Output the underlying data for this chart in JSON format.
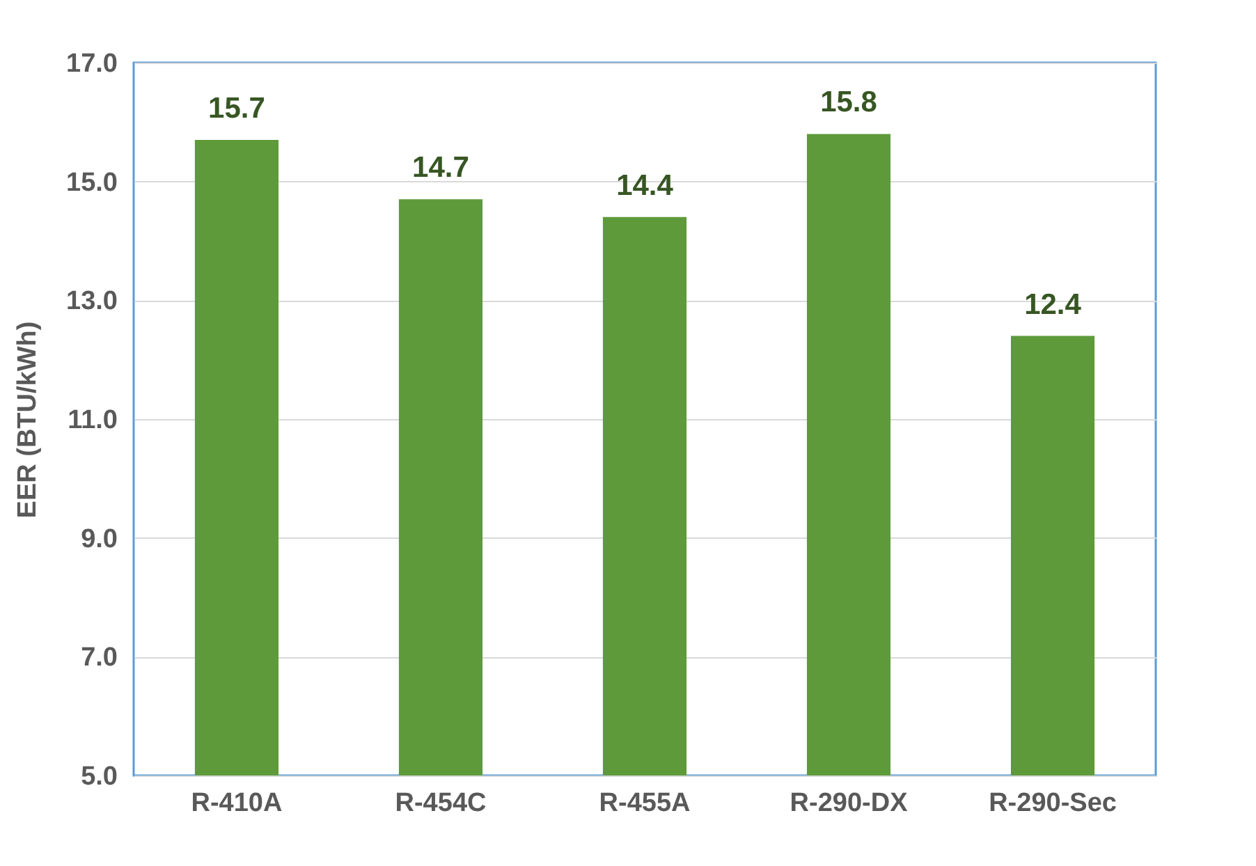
{
  "chart_data": {
    "type": "bar",
    "ylabel": "EER (BTU/kWh)",
    "categories": [
      "R-410A",
      "R-454C",
      "R-455A",
      "R-290-DX",
      "R-290-Sec"
    ],
    "values": [
      15.7,
      14.7,
      14.4,
      15.8,
      12.4
    ],
    "color": "#5e9a3a",
    "ylim": [
      5,
      17
    ],
    "yticks": [
      {
        "value": 5,
        "label": "5.0"
      },
      {
        "value": 7,
        "label": "7.0"
      },
      {
        "value": 9,
        "label": "9.0"
      },
      {
        "value": 11,
        "label": "11.0"
      },
      {
        "value": 13,
        "label": "13.0"
      },
      {
        "value": 15,
        "label": "15.0"
      },
      {
        "value": 17,
        "label": "17.0"
      }
    ],
    "grid": "y",
    "data_labels": true
  }
}
